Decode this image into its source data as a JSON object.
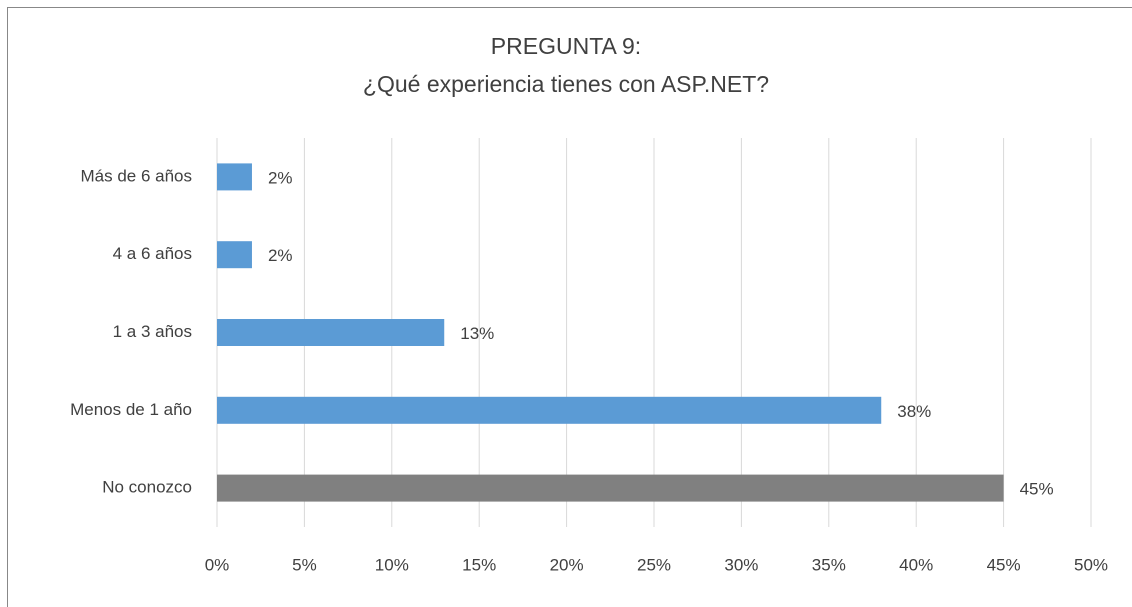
{
  "chart_data": {
    "type": "bar",
    "orientation": "horizontal",
    "title": "PREGUNTA 9:",
    "subtitle": "¿Qué experiencia tienes con ASP.NET?",
    "categories": [
      "Más de 6 años",
      "4 a 6 años",
      "1 a 3 años",
      "Menos de 1 año",
      "No conozco"
    ],
    "values": [
      2,
      2,
      13,
      38,
      45
    ],
    "value_labels": [
      "2%",
      "2%",
      "13%",
      "38%",
      "45%"
    ],
    "colors": [
      "#5b9bd5",
      "#5b9bd5",
      "#5b9bd5",
      "#5b9bd5",
      "#808080"
    ],
    "xlim": [
      0,
      50
    ],
    "xticks": [
      {
        "value": 0,
        "label": "0%"
      },
      {
        "value": 5,
        "label": "5%"
      },
      {
        "value": 10,
        "label": "10%"
      },
      {
        "value": 15,
        "label": "15%"
      },
      {
        "value": 20,
        "label": "20%"
      },
      {
        "value": 25,
        "label": "25%"
      },
      {
        "value": 30,
        "label": "30%"
      },
      {
        "value": 35,
        "label": "35%"
      },
      {
        "value": 40,
        "label": "40%"
      },
      {
        "value": 45,
        "label": "45%"
      },
      {
        "value": 50,
        "label": "50%"
      }
    ],
    "grid": true
  }
}
